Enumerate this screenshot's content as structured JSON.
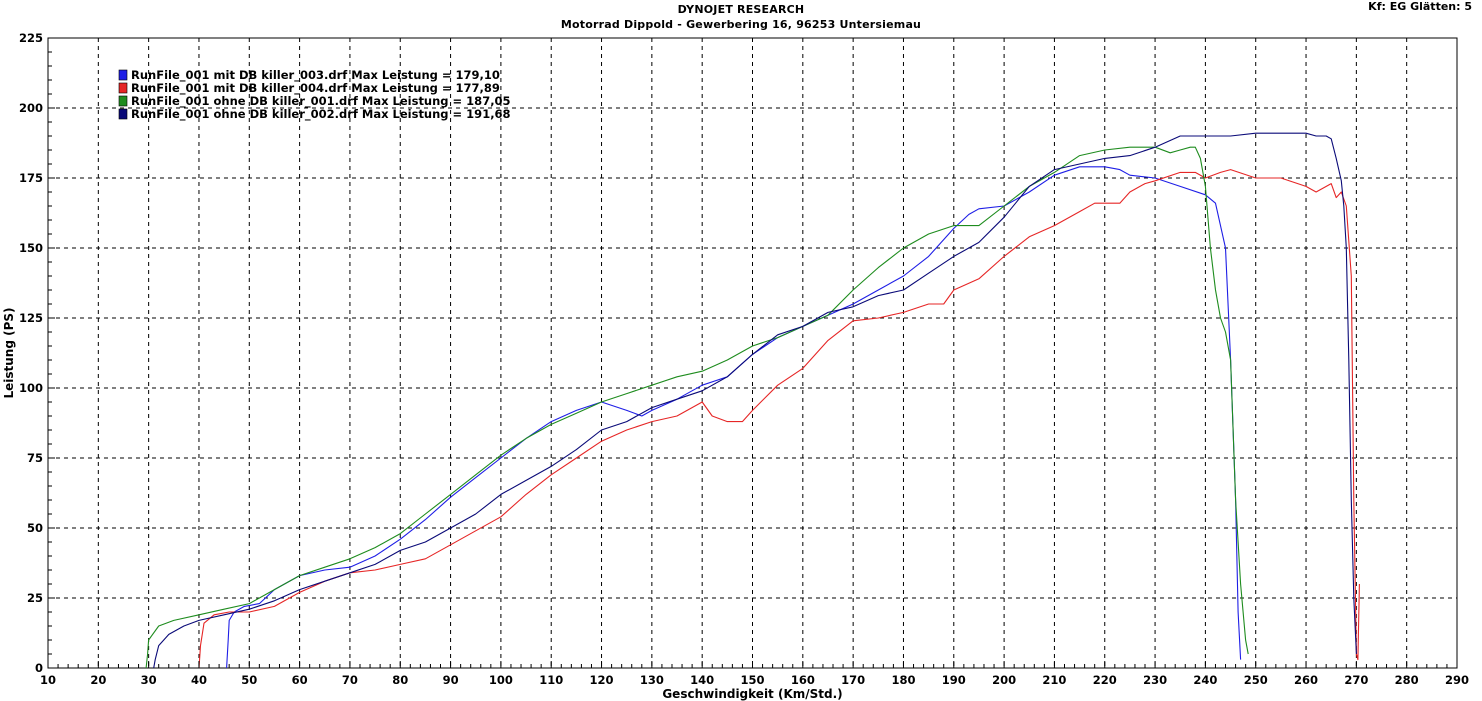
{
  "header": {
    "title": "DYNOJET RESEARCH",
    "subtitle": "Motorrad Dippold - Gewerbering 16, 96253 Untersiemau",
    "correction": "Kf: EG  Glätten: 5"
  },
  "chart_data": {
    "type": "line",
    "xlabel": "Geschwindigkeit (Km/Std.)",
    "ylabel": "Leistung (PS)",
    "xlim": [
      10,
      290
    ],
    "ylim": [
      0,
      225
    ],
    "xticks": [
      10,
      20,
      30,
      40,
      50,
      60,
      70,
      80,
      90,
      100,
      110,
      120,
      130,
      140,
      150,
      160,
      170,
      180,
      190,
      200,
      210,
      220,
      230,
      240,
      250,
      260,
      270,
      280,
      290
    ],
    "yticks": [
      0,
      25,
      50,
      75,
      100,
      125,
      150,
      175,
      200,
      225
    ],
    "grid": true,
    "legend_position": "top-left",
    "series": [
      {
        "name": "RunFile_001 mit DB killer_003.drf Max Leistung = 179,10",
        "color": "#1e1ee6",
        "x": [
          45.5,
          45.8,
          46,
          47,
          49,
          52,
          55,
          60,
          65,
          70,
          75,
          80,
          85,
          90,
          95,
          100,
          105,
          110,
          115,
          120,
          125,
          128,
          130,
          135,
          140,
          145,
          150,
          155,
          160,
          165,
          170,
          175,
          180,
          185,
          190,
          193,
          195,
          200,
          205,
          210,
          215,
          220,
          223,
          225,
          230,
          235,
          240,
          242,
          244,
          245,
          246,
          246.5,
          247
        ],
        "y": [
          0,
          10,
          17,
          20,
          22,
          23,
          28,
          33,
          35,
          36,
          40,
          46,
          53,
          61,
          68,
          75,
          82,
          88,
          92,
          95,
          92,
          90,
          92,
          96,
          101,
          104,
          112,
          118,
          122,
          126,
          130,
          135,
          140,
          147,
          157,
          162,
          164,
          165,
          170,
          176,
          179,
          179,
          178,
          176,
          175,
          172,
          169,
          166,
          150,
          110,
          60,
          20,
          3
        ]
      },
      {
        "name": "RunFile_001 mit DB killer_004.drf Max Leistung = 177,89",
        "color": "#e62626",
        "x": [
          40,
          40.3,
          41,
          43,
          46,
          50,
          55,
          60,
          65,
          70,
          75,
          80,
          85,
          90,
          95,
          100,
          105,
          110,
          115,
          120,
          125,
          130,
          135,
          140,
          142,
          145,
          148,
          150,
          155,
          160,
          165,
          170,
          175,
          180,
          185,
          188,
          190,
          195,
          200,
          205,
          210,
          215,
          218,
          220,
          223,
          225,
          228,
          230,
          235,
          238,
          240,
          243,
          245,
          250,
          255,
          260,
          262,
          265,
          266,
          267,
          268,
          269,
          269.5,
          270,
          270.3,
          270.6
        ],
        "y": [
          0,
          8,
          16,
          19,
          20,
          20,
          22,
          27,
          31,
          34,
          35,
          37,
          39,
          44,
          49,
          54,
          62,
          69,
          75,
          81,
          85,
          88,
          90,
          95,
          90,
          88,
          88,
          92,
          101,
          107,
          117,
          124,
          125,
          127,
          130,
          130,
          135,
          139,
          147,
          154,
          158,
          163,
          166,
          166,
          166,
          170,
          173,
          174,
          177,
          177,
          175,
          177,
          178,
          175,
          175,
          172,
          170,
          173,
          168,
          170,
          165,
          140,
          60,
          5,
          3,
          30
        ]
      },
      {
        "name": "RunFile_001 ohne DB killer_001.drf Max Leistung = 187,05",
        "color": "#1e8c1e",
        "x": [
          29.5,
          29.8,
          30,
          32,
          35,
          40,
          45,
          50,
          55,
          60,
          65,
          70,
          75,
          80,
          85,
          90,
          95,
          100,
          105,
          110,
          115,
          120,
          125,
          130,
          135,
          140,
          145,
          150,
          155,
          160,
          165,
          170,
          175,
          180,
          185,
          190,
          195,
          200,
          205,
          210,
          215,
          220,
          225,
          230,
          233,
          235,
          237,
          238,
          239,
          240,
          241,
          242,
          243,
          244,
          245,
          246,
          247,
          248,
          248.5
        ],
        "y": [
          0,
          5,
          10,
          15,
          17,
          19,
          21,
          23,
          28,
          33,
          36,
          39,
          43,
          48,
          55,
          62,
          69,
          76,
          82,
          87,
          91,
          95,
          98,
          101,
          104,
          106,
          110,
          115,
          118,
          122,
          126,
          135,
          143,
          150,
          155,
          158,
          158,
          165,
          172,
          177,
          183,
          185,
          186,
          186,
          184,
          185,
          186,
          186,
          182,
          172,
          150,
          135,
          125,
          120,
          110,
          60,
          30,
          10,
          5
        ]
      },
      {
        "name": "RunFile_001 ohne DB killer_002.drf Max Leistung = 191,68",
        "color": "#0a0a78",
        "x": [
          31,
          31.3,
          32,
          34,
          37,
          40,
          45,
          50,
          55,
          60,
          65,
          70,
          75,
          80,
          85,
          90,
          95,
          100,
          105,
          110,
          115,
          120,
          125,
          130,
          135,
          140,
          145,
          150,
          155,
          160,
          165,
          170,
          175,
          180,
          185,
          190,
          195,
          200,
          205,
          210,
          215,
          220,
          225,
          230,
          235,
          240,
          245,
          250,
          255,
          260,
          262,
          264,
          265,
          266,
          267,
          267.5,
          268,
          268.5,
          269,
          269.5,
          270
        ],
        "y": [
          0,
          3,
          8,
          12,
          15,
          17,
          19,
          21,
          24,
          28,
          31,
          34,
          37,
          42,
          45,
          50,
          55,
          62,
          67,
          72,
          78,
          85,
          88,
          93,
          96,
          99,
          104,
          112,
          119,
          122,
          127,
          129,
          133,
          135,
          141,
          147,
          152,
          161,
          172,
          178,
          180,
          182,
          183,
          186,
          190,
          190,
          190,
          191,
          191,
          191,
          190,
          190,
          189,
          182,
          174,
          165,
          150,
          110,
          60,
          25,
          5
        ]
      }
    ]
  }
}
